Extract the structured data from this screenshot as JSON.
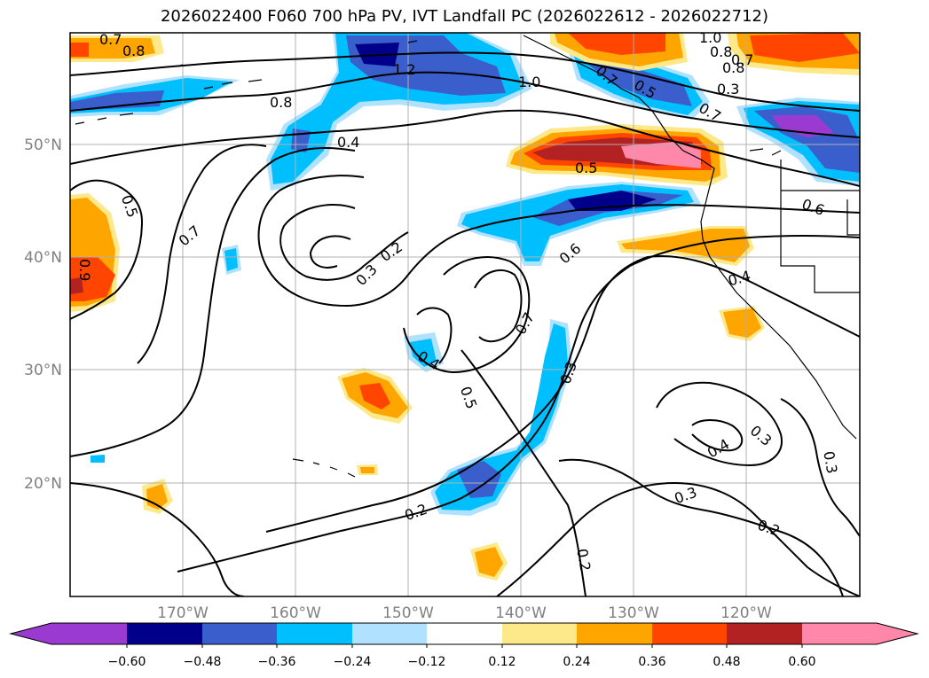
{
  "title": "2026022400 F060 700 hPa PV, IVT Landfall PC (2026022612 - 2026022712)",
  "latitude_labels": [
    "50°N",
    "40°N",
    "30°N",
    "20°N"
  ],
  "longitude_labels": [
    "170°W",
    "160°W",
    "150°W",
    "140°W",
    "130°W",
    "120°W"
  ],
  "contour_labels": [
    "0.7",
    "0.8",
    "0.8",
    "1.2",
    "1.0",
    "0.4",
    "0.5",
    "0.7",
    "0.9",
    "0.2",
    "0.3",
    "0.4",
    "0.5",
    "0.6",
    "0.7",
    "0.3",
    "0.4",
    "0.3",
    "0.3",
    "0.2",
    "0.3",
    "0.2",
    "0.2",
    "0.6",
    "0.4",
    "1.0",
    "0.8",
    "0.7",
    "0.8",
    "0.3",
    "0.7",
    "0.5",
    "0.7",
    "0.5"
  ],
  "colorbar": {
    "tick_labels": [
      "−0.60",
      "−0.48",
      "−0.36",
      "−0.24",
      "−0.12",
      "0.12",
      "0.24",
      "0.36",
      "0.48",
      "0.60"
    ],
    "colors": [
      "#9a3ad1",
      "#00008b",
      "#3a5fcd",
      "#00bfff",
      "#b0e2ff",
      "#ffffff",
      "#fde98a",
      "#ffa500",
      "#ff4500",
      "#b22222",
      "#ff88aa"
    ]
  }
}
